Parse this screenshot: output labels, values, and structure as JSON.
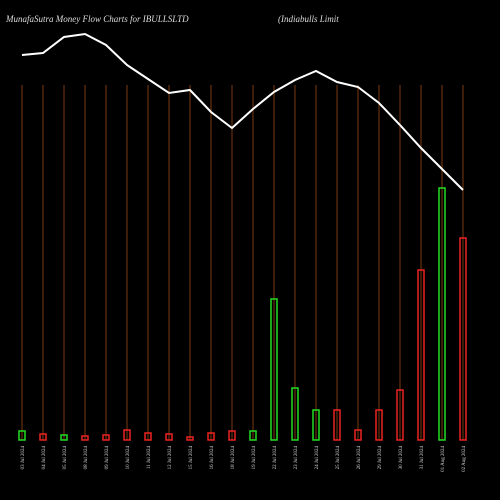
{
  "chart_data": {
    "type": "bar",
    "title": "MunafaSutra  Money Flow  Charts for IBULLSLTD",
    "subtitle": "(Indiabulls Limit",
    "categories": [
      "03 Jul 2024",
      "04 Jul 2024",
      "05 Jul 2024",
      "08 Jul 2024",
      "09 Jul 2024",
      "10 Jul 2024",
      "11 Jul 2024",
      "12 Jul 2024",
      "15 Jul 2024",
      "16 Jul 2024",
      "18 Jul 2024",
      "19 Jul 2024",
      "22 Jul 2024",
      "23 Jul 2024",
      "24 Jul 2024",
      "25 Jul 2024",
      "26 Jul 2024",
      "29 Jul 2024",
      "30 Jul 2024",
      "31 Jul 2024",
      "01 Aug 2024",
      "02 Aug 2024"
    ],
    "values": [
      9,
      6,
      5,
      4,
      5,
      10,
      7,
      6,
      3,
      7,
      9,
      9,
      141,
      52,
      30,
      30,
      10,
      30,
      50,
      170,
      252,
      202
    ],
    "colors": [
      "#22dd22",
      "#ee2222",
      "#22dd22",
      "#ee2222",
      "#ee2222",
      "#ee2222",
      "#ee2222",
      "#ee2222",
      "#ee2222",
      "#ee2222",
      "#ee2222",
      "#22dd22",
      "#22dd22",
      "#22dd22",
      "#22dd22",
      "#ee2222",
      "#ee2222",
      "#ee2222",
      "#ee2222",
      "#ee2222",
      "#22dd22",
      "#ee2222"
    ],
    "line": {
      "color": "#ffffff",
      "values": [
        385,
        387,
        403,
        406,
        395,
        375,
        361,
        347,
        350,
        328,
        312,
        331,
        348,
        360,
        369,
        358,
        353,
        337,
        315,
        292,
        271,
        250
      ]
    },
    "ylim": [
      0,
      400
    ]
  }
}
